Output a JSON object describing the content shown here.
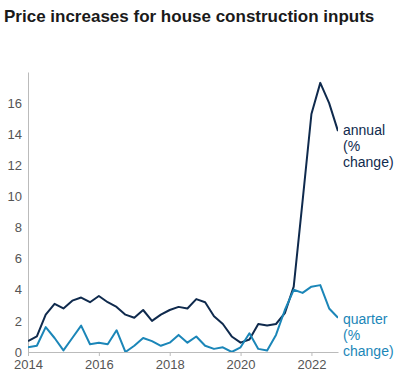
{
  "chart_data": {
    "type": "line",
    "title": "Price increases for house construction inputs",
    "x": [
      2014,
      2014.25,
      2014.5,
      2014.75,
      2015,
      2015.25,
      2015.5,
      2015.75,
      2016,
      2016.25,
      2016.5,
      2016.75,
      2017,
      2017.25,
      2017.5,
      2017.75,
      2018,
      2018.25,
      2018.5,
      2018.75,
      2019,
      2019.25,
      2019.5,
      2019.75,
      2020,
      2020.25,
      2020.5,
      2020.75,
      2021,
      2021.25,
      2021.5,
      2021.75,
      2022,
      2022.25,
      2022.5,
      2022.75
    ],
    "series": [
      {
        "name": "annual (% change)",
        "color": "#0f2a4d",
        "values": [
          0.7,
          1.0,
          2.4,
          3.1,
          2.8,
          3.3,
          3.5,
          3.2,
          3.6,
          3.2,
          2.9,
          2.4,
          2.2,
          2.7,
          2.0,
          2.4,
          2.7,
          2.9,
          2.8,
          3.4,
          3.2,
          2.3,
          1.8,
          1.0,
          0.6,
          0.8,
          1.8,
          1.7,
          1.8,
          2.5,
          4.2,
          9.7,
          15.3,
          17.3,
          16.0,
          14.2
        ]
      },
      {
        "name": "quarter (% change)",
        "color": "#1b86b8",
        "values": [
          0.3,
          0.4,
          1.6,
          0.9,
          0.1,
          0.9,
          1.7,
          0.5,
          0.6,
          0.5,
          1.4,
          0.0,
          0.4,
          0.9,
          0.7,
          0.4,
          0.6,
          1.1,
          0.6,
          1.0,
          0.4,
          0.2,
          0.3,
          0.0,
          0.3,
          1.2,
          0.2,
          0.1,
          1.1,
          2.7,
          4.0,
          3.8,
          4.2,
          4.3,
          2.8,
          2.2
        ]
      }
    ],
    "xlim": [
      2014,
      2022.75
    ],
    "xticks": [
      2014,
      2016,
      2018,
      2020,
      2022
    ],
    "ylim": [
      0,
      18
    ],
    "yticks": [
      0,
      2,
      4,
      6,
      8,
      10,
      12,
      14,
      16
    ],
    "grid": false
  }
}
